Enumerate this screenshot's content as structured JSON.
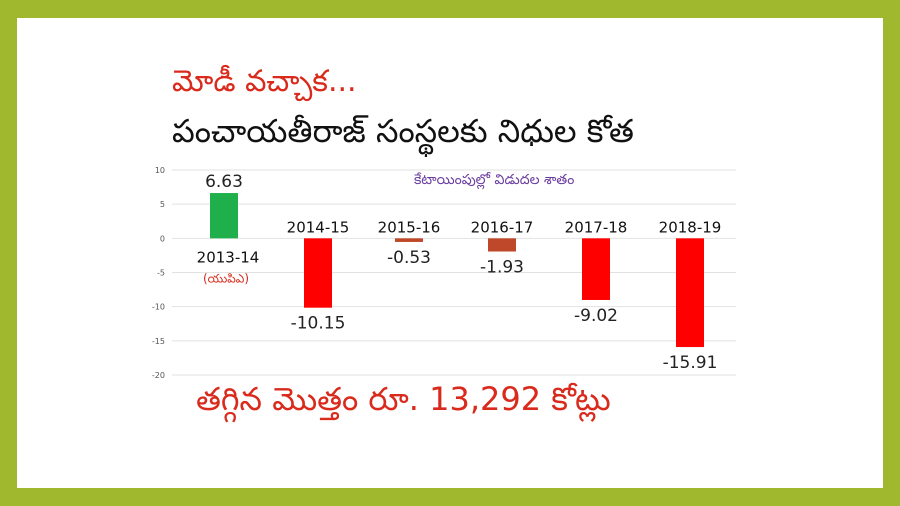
{
  "slide": {
    "title_line1": "మోడీ వచ్చాక...",
    "title_line2": "పంచాయతీరాజ్ సంస్థలకు నిధుల కోత",
    "chart_subtitle": "కేటాయింపుల్లో విడుదల శాతం",
    "total_text": "తగ్గిన మొత్తం రూ. 13,292 కోట్లు"
  },
  "chart_data": {
    "type": "bar",
    "title": "కేటాయింపుల్లో విడుదల శాతం",
    "categories": [
      "2013-14",
      "2014-15",
      "2015-16",
      "2016-17",
      "2017-18",
      "2018-19"
    ],
    "values": [
      6.63,
      -10.15,
      -0.53,
      -1.93,
      -9.02,
      -15.91
    ],
    "value_labels": [
      "6.63",
      "-10.15",
      "-0.53",
      "-1.93",
      "-9.02",
      "-15.91"
    ],
    "bar_colors": [
      "#1fb04b",
      "#ff0000",
      "#c0482a",
      "#c0482a",
      "#ff0000",
      "#ff0000"
    ],
    "first_category_note": "(యుపిఎ)",
    "first_category_note_color": "#d92a1c",
    "yticks": [
      10,
      5,
      0,
      -5,
      -10,
      -15,
      -20
    ],
    "ylim": [
      -20,
      10
    ],
    "grid": true,
    "xlabel": "",
    "ylabel": ""
  }
}
